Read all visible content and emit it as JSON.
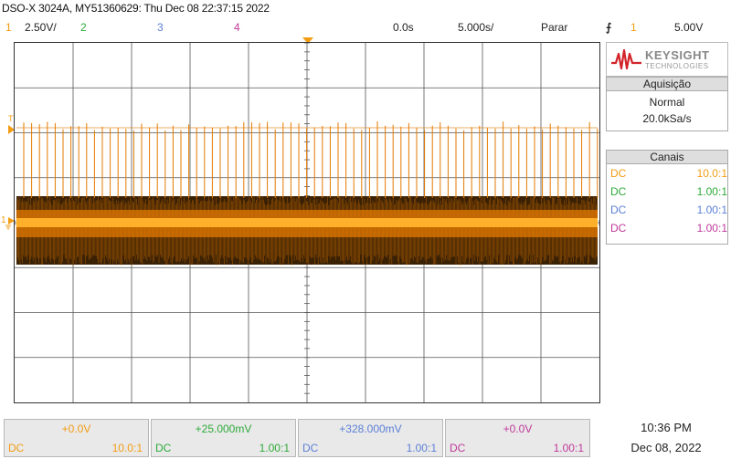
{
  "title": "DSO-X 3024A, MY51360629: Thu Dec 08 22:37:15 2022",
  "status": {
    "ch1_num": "1",
    "ch1_scale": "2.50V/",
    "ch2_num": "2",
    "ch3_num": "3",
    "ch4_num": "4",
    "time_delay": "0.0s",
    "time_scale": "5.000s/",
    "run_state": "Parar",
    "trigger_glyph": "⨍",
    "trigger_channel": "1",
    "trigger_level": "5.00V"
  },
  "colors": {
    "ch1": "#f39c12",
    "ch2": "#2eaa3a",
    "ch3": "#5b7fd6",
    "ch4": "#c0399a",
    "trace": "#e37a00"
  },
  "logo": {
    "brand": "KEYSIGHT",
    "sub": "TECHNOLOGIES"
  },
  "acquisition": {
    "header": "Aquisição",
    "mode": "Normal",
    "rate": "20.0kSa/s"
  },
  "channels_panel": {
    "header": "Canais",
    "rows": [
      {
        "coupling": "DC",
        "probe": "10.0:1"
      },
      {
        "coupling": "DC",
        "probe": "1.00:1"
      },
      {
        "coupling": "DC",
        "probe": "1.00:1"
      },
      {
        "coupling": "DC",
        "probe": "1.00:1"
      }
    ]
  },
  "markers": {
    "trigger_T": "T",
    "ch1_ground": "1"
  },
  "bottom": [
    {
      "offset": "+0.0V",
      "coupling": "DC",
      "probe": "10.0:1"
    },
    {
      "offset": "+25.000mV",
      "coupling": "DC",
      "probe": "1.00:1"
    },
    {
      "offset": "+328.000mV",
      "coupling": "DC",
      "probe": "1.00:1"
    },
    {
      "offset": "+0.0V",
      "coupling": "DC",
      "probe": "1.00:1"
    }
  ],
  "clock": {
    "time": "10:36 PM",
    "date": "Dec 08, 2022"
  }
}
